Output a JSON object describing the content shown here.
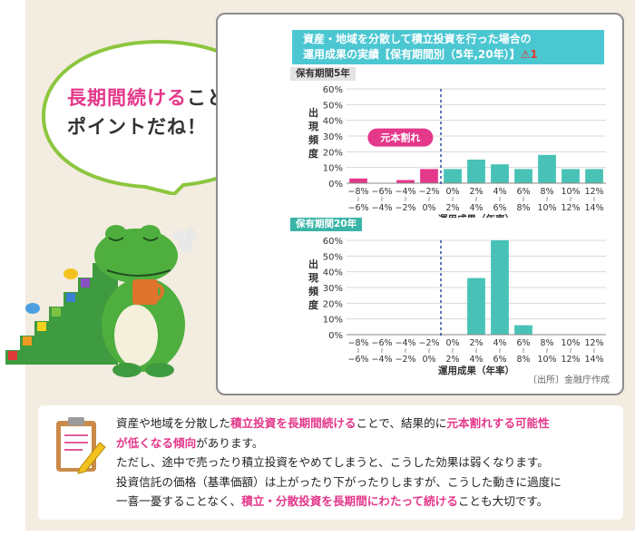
{
  "bubble": {
    "highlight": "長期間続ける",
    "rest_line1": "ことが",
    "line2": "ポイントだね！"
  },
  "chart_panel": {
    "title_line1": "資産・地域を分散して積立投資を行った場合の",
    "title_line2": "運用成果の実績【保有期間別（5年,20年）】",
    "title_warn_mark": "⚠1",
    "source": "〔出所〕金融庁作成"
  },
  "chart_data": [
    {
      "type": "bar",
      "section_label": "保有期間5年",
      "ylabel": "出現頻度",
      "xlabel": "運用成果（年率）",
      "categories_top": [
        "−8%",
        "−6%",
        "−4%",
        "−2%",
        "0%",
        "2%",
        "4%",
        "6%",
        "8%",
        "10%",
        "12%"
      ],
      "categories_bottom": [
        "−6%",
        "−4%",
        "−2%",
        "0%",
        "2%",
        "4%",
        "6%",
        "8%",
        "10%",
        "12%",
        "14%"
      ],
      "values": [
        3,
        0,
        2,
        9,
        9,
        15,
        12,
        9,
        18,
        9,
        9
      ],
      "ylim": [
        0,
        60
      ],
      "yticks": [
        "0%",
        "10%",
        "20%",
        "30%",
        "40%",
        "50%",
        "60%"
      ],
      "annotation": "元本割れ",
      "colors": {
        "loss": "#e4388b",
        "gain": "#48c2b6"
      }
    },
    {
      "type": "bar",
      "section_label": "保有期間20年",
      "ylabel": "出現頻度",
      "xlabel": "運用成果（年率）",
      "categories_top": [
        "−8%",
        "−6%",
        "−4%",
        "−2%",
        "0%",
        "2%",
        "4%",
        "6%",
        "8%",
        "10%",
        "12%"
      ],
      "categories_bottom": [
        "−6%",
        "−4%",
        "−2%",
        "0%",
        "2%",
        "4%",
        "6%",
        "8%",
        "10%",
        "12%",
        "14%"
      ],
      "values": [
        0,
        0,
        0,
        0,
        0,
        36,
        60,
        6,
        0,
        0,
        0
      ],
      "ylim": [
        0,
        60
      ],
      "yticks": [
        "0%",
        "10%",
        "20%",
        "30%",
        "40%",
        "50%",
        "60%"
      ],
      "colors": {
        "loss": "#e4388b",
        "gain": "#48c2b6"
      }
    }
  ],
  "note": {
    "l1a": "資産や地域を分散した",
    "l1b": "積立投資を長期間続ける",
    "l1c": "ことで、結果的に",
    "l1d": "元本割れする可能性",
    "l2a": "が低くなる傾向",
    "l2b": "があります。",
    "l3": "ただし、途中で売ったり積立投資をやめてしまうと、こうした効果は弱くなります。",
    "l4": "投資信託の価格（基準価額）は上がったり下がったりしますが、こうした動きに過度に",
    "l5a": "一喜一憂することなく、",
    "l5b": "積立・分散投資を長期間にわたって続ける",
    "l5c": "ことも大切です。"
  }
}
